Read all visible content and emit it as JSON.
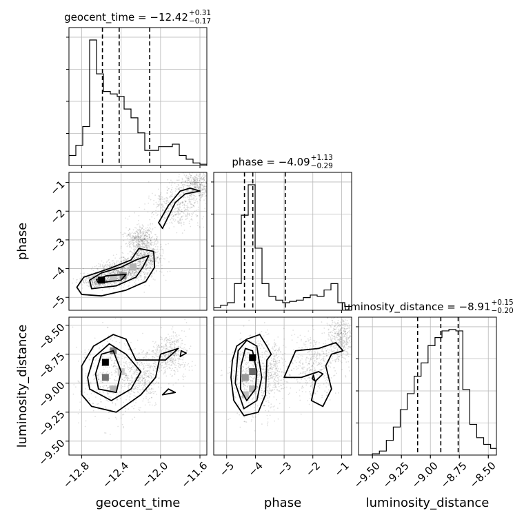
{
  "chart_data": {
    "type": "corner",
    "parameters": [
      "geocent_time",
      "phase",
      "luminosity_distance"
    ],
    "titles": [
      {
        "parameter": "geocent_time",
        "main": "geocent_time = −12.42",
        "plus": "+0.31",
        "minus": "−0.17"
      },
      {
        "parameter": "phase",
        "main": "phase = −4.09",
        "plus": "+1.13",
        "minus": "−0.29"
      },
      {
        "parameter": "luminosity_distance",
        "main": "luminosity_distance = −8.91",
        "plus": "+0.15",
        "minus": "−0.20"
      }
    ],
    "axis_labels": {
      "geocent_time": "geocent_time",
      "phase": "phase",
      "luminosity_distance": "luminosity_distance"
    },
    "ranges": {
      "geocent_time": [
        -12.93,
        -11.53
      ],
      "phase": [
        -5.45,
        -0.65
      ],
      "luminosity_distance": [
        -9.62,
        -8.43
      ]
    },
    "ticks": {
      "geocent_time": [
        {
          "value": -12.8,
          "label": "−12.8"
        },
        {
          "value": -12.4,
          "label": "−12.4"
        },
        {
          "value": -12.0,
          "label": "−12.0"
        },
        {
          "value": -11.6,
          "label": "−11.6"
        }
      ],
      "phase": [
        {
          "value": -5,
          "label": "−5"
        },
        {
          "value": -4,
          "label": "−4"
        },
        {
          "value": -3,
          "label": "−3"
        },
        {
          "value": -2,
          "label": "−2"
        },
        {
          "value": -1,
          "label": "−1"
        }
      ],
      "luminosity_distance": [
        {
          "value": -9.5,
          "label": "−9.50"
        },
        {
          "value": -9.25,
          "label": "−9.25"
        },
        {
          "value": -9.0,
          "label": "−9.00"
        },
        {
          "value": -8.75,
          "label": "−8.75"
        },
        {
          "value": -8.5,
          "label": "−8.50"
        }
      ]
    },
    "grid": true,
    "histograms": {
      "geocent_time": {
        "bin_edges": [
          -12.93,
          -12.86,
          -12.79,
          -12.72,
          -12.65,
          -12.58,
          -12.51,
          -12.44,
          -12.37,
          -12.3,
          -12.23,
          -12.16,
          -12.09,
          -12.02,
          -11.95,
          -11.88,
          -11.81,
          -11.74,
          -11.67,
          -11.6,
          -11.53
        ],
        "counts": [
          0.08,
          0.16,
          0.31,
          1.0,
          0.73,
          0.59,
          0.57,
          0.55,
          0.45,
          0.38,
          0.26,
          0.12,
          0.12,
          0.15,
          0.15,
          0.17,
          0.08,
          0.05,
          0.02,
          0.01
        ],
        "quantiles": [
          -12.59,
          -12.42,
          -12.11
        ]
      },
      "phase": {
        "bin_edges": [
          -5.45,
          -5.21,
          -4.97,
          -4.73,
          -4.49,
          -4.25,
          -4.01,
          -3.77,
          -3.53,
          -3.29,
          -3.05,
          -2.81,
          -2.57,
          -2.33,
          -2.09,
          -1.85,
          -1.61,
          -1.37,
          -1.13,
          -0.89,
          -0.65
        ],
        "counts": [
          0.02,
          0.04,
          0.06,
          0.21,
          0.75,
          0.99,
          0.49,
          0.21,
          0.11,
          0.08,
          0.06,
          0.07,
          0.08,
          0.1,
          0.12,
          0.11,
          0.16,
          0.21,
          0.06,
          0.03
        ],
        "quantiles": [
          -4.38,
          -4.09,
          -2.96
        ]
      },
      "luminosity_distance": {
        "bin_edges": [
          -9.62,
          -9.56,
          -9.5,
          -9.44,
          -9.38,
          -9.32,
          -9.26,
          -9.2,
          -9.14,
          -9.08,
          -9.02,
          -8.96,
          -8.9,
          -8.84,
          -8.78,
          -8.72,
          -8.66,
          -8.6,
          -8.54,
          -8.48,
          -8.43
        ],
        "counts": [
          0.0,
          0.0,
          0.01,
          0.03,
          0.11,
          0.21,
          0.34,
          0.46,
          0.59,
          0.69,
          0.82,
          0.88,
          0.93,
          0.94,
          0.93,
          0.49,
          0.23,
          0.13,
          0.08,
          0.05
        ],
        "quantiles": [
          -9.11,
          -8.91,
          -8.76
        ]
      }
    },
    "pairs": [
      {
        "x": "geocent_time",
        "y": "phase",
        "cluster_points": [
          [
            -12.62,
            -4.4,
            0.1,
            0.12
          ],
          [
            -12.45,
            -4.15,
            0.12,
            0.2
          ],
          [
            -12.3,
            -4.0,
            0.12,
            0.25
          ],
          [
            -12.15,
            -3.6,
            0.08,
            0.25
          ],
          [
            -12.2,
            -3.0,
            0.08,
            0.25
          ],
          [
            -11.85,
            -1.85,
            0.12,
            0.35
          ],
          [
            -11.65,
            -1.1,
            0.08,
            0.25
          ]
        ],
        "density_cells": [
          {
            "x": -12.6,
            "y": -4.4,
            "level": 1.0
          },
          {
            "x": -12.38,
            "y": -4.25,
            "level": 0.45
          },
          {
            "x": -12.28,
            "y": -3.95,
            "level": 0.3
          },
          {
            "x": -12.48,
            "y": -4.3,
            "level": 0.25
          }
        ],
        "contours": [
          [
            [
              -12.8,
              -4.9
            ],
            [
              -12.6,
              -4.95
            ],
            [
              -12.35,
              -4.75
            ],
            [
              -12.15,
              -4.45
            ],
            [
              -12.06,
              -3.95
            ],
            [
              -12.07,
              -3.4
            ],
            [
              -12.22,
              -3.3
            ],
            [
              -12.3,
              -3.7
            ],
            [
              -12.52,
              -4.0
            ],
            [
              -12.78,
              -4.3
            ],
            [
              -12.85,
              -4.65
            ]
          ],
          [
            [
              -12.7,
              -4.7
            ],
            [
              -12.45,
              -4.6
            ],
            [
              -12.25,
              -4.3
            ],
            [
              -12.18,
              -3.95
            ],
            [
              -12.12,
              -3.55
            ],
            [
              -12.25,
              -3.7
            ],
            [
              -12.4,
              -3.95
            ],
            [
              -12.6,
              -4.15
            ],
            [
              -12.72,
              -4.4
            ]
          ],
          [
            [
              -12.63,
              -4.5
            ],
            [
              -12.4,
              -4.4
            ],
            [
              -12.35,
              -4.2
            ],
            [
              -12.55,
              -4.25
            ],
            [
              -12.65,
              -4.38
            ]
          ],
          [
            [
              -11.98,
              -2.6
            ],
            [
              -11.85,
              -1.7
            ],
            [
              -11.75,
              -1.4
            ],
            [
              -11.6,
              -1.3
            ],
            [
              -11.7,
              -1.2
            ],
            [
              -11.8,
              -1.3
            ],
            [
              -11.92,
              -1.8
            ],
            [
              -12.02,
              -2.4
            ]
          ]
        ]
      },
      {
        "x": "geocent_time",
        "y": "luminosity_distance",
        "cluster_points": [
          [
            -12.5,
            -8.95,
            0.16,
            0.18
          ],
          [
            -12.2,
            -8.95,
            0.1,
            0.1
          ],
          [
            -11.9,
            -8.75,
            0.1,
            0.1
          ]
        ],
        "density_cells": [
          {
            "x": -12.56,
            "y": -8.82,
            "level": 1.0
          },
          {
            "x": -12.56,
            "y": -8.95,
            "level": 0.55
          },
          {
            "x": -12.48,
            "y": -8.72,
            "level": 0.5
          },
          {
            "x": -12.48,
            "y": -9.05,
            "level": 0.3
          },
          {
            "x": -12.4,
            "y": -8.9,
            "level": 0.2
          }
        ],
        "contours": [
          [
            [
              -12.8,
              -9.1
            ],
            [
              -12.7,
              -9.2
            ],
            [
              -12.45,
              -9.25
            ],
            [
              -12.2,
              -9.1
            ],
            [
              -12.05,
              -8.95
            ],
            [
              -12.0,
              -8.75
            ],
            [
              -11.82,
              -8.7
            ],
            [
              -11.95,
              -8.8
            ],
            [
              -12.25,
              -8.8
            ],
            [
              -12.35,
              -8.62
            ],
            [
              -12.48,
              -8.58
            ],
            [
              -12.68,
              -8.68
            ],
            [
              -12.8,
              -8.85
            ]
          ],
          [
            [
              -12.72,
              -9.05
            ],
            [
              -12.5,
              -9.15
            ],
            [
              -12.3,
              -9.05
            ],
            [
              -12.2,
              -8.9
            ],
            [
              -12.35,
              -8.75
            ],
            [
              -12.52,
              -8.66
            ],
            [
              -12.68,
              -8.78
            ],
            [
              -12.74,
              -8.95
            ]
          ],
          [
            [
              -12.63,
              -9.05
            ],
            [
              -12.45,
              -9.08
            ],
            [
              -12.4,
              -8.9
            ],
            [
              -12.48,
              -8.72
            ],
            [
              -12.6,
              -8.75
            ],
            [
              -12.66,
              -8.92
            ]
          ],
          [
            [
              -11.92,
              -9.05
            ],
            [
              -11.85,
              -9.08
            ],
            [
              -11.98,
              -9.1
            ]
          ],
          [
            [
              -11.8,
              -8.77
            ],
            [
              -11.74,
              -8.74
            ],
            [
              -11.79,
              -8.72
            ]
          ]
        ]
      },
      {
        "x": "phase",
        "y": "luminosity_distance",
        "cluster_points": [
          [
            -4.2,
            -8.95,
            0.35,
            0.18
          ],
          [
            -3.5,
            -8.9,
            0.3,
            0.15
          ],
          [
            -2.0,
            -8.85,
            0.45,
            0.15
          ],
          [
            -1.0,
            -8.6,
            0.25,
            0.1
          ]
        ],
        "density_cells": [
          {
            "x": -4.1,
            "y": -8.78,
            "level": 1.0
          },
          {
            "x": -4.1,
            "y": -8.9,
            "level": 0.6
          },
          {
            "x": -4.35,
            "y": -8.95,
            "level": 0.4
          },
          {
            "x": -4.35,
            "y": -9.1,
            "level": 0.25
          },
          {
            "x": -4.1,
            "y": -9.05,
            "level": 0.3
          }
        ],
        "contours": [
          [
            [
              -4.85,
              -8.95
            ],
            [
              -4.75,
              -9.15
            ],
            [
              -4.4,
              -9.28
            ],
            [
              -3.9,
              -9.25
            ],
            [
              -3.65,
              -9.1
            ],
            [
              -3.6,
              -8.8
            ],
            [
              -3.45,
              -8.75
            ],
            [
              -3.6,
              -8.68
            ],
            [
              -3.85,
              -8.58
            ],
            [
              -4.3,
              -8.62
            ],
            [
              -4.65,
              -8.68
            ],
            [
              -4.8,
              -8.8
            ]
          ],
          [
            [
              -4.7,
              -9.0
            ],
            [
              -4.4,
              -9.22
            ],
            [
              -3.95,
              -9.15
            ],
            [
              -3.78,
              -8.95
            ],
            [
              -3.95,
              -8.68
            ],
            [
              -4.3,
              -8.63
            ],
            [
              -4.6,
              -8.72
            ]
          ],
          [
            [
              -4.52,
              -9.05
            ],
            [
              -4.3,
              -9.15
            ],
            [
              -4.0,
              -9.05
            ],
            [
              -3.95,
              -8.9
            ],
            [
              -4.1,
              -8.72
            ],
            [
              -4.35,
              -8.7
            ],
            [
              -4.5,
              -8.85
            ]
          ],
          [
            [
              -3.0,
              -8.95
            ],
            [
              -2.4,
              -8.95
            ],
            [
              -1.8,
              -8.9
            ],
            [
              -1.65,
              -8.92
            ],
            [
              -1.9,
              -8.98
            ],
            [
              -2.05,
              -9.15
            ],
            [
              -1.65,
              -9.2
            ],
            [
              -1.35,
              -9.05
            ],
            [
              -1.55,
              -8.85
            ],
            [
              -1.35,
              -8.75
            ],
            [
              -0.95,
              -8.72
            ],
            [
              -1.2,
              -8.65
            ],
            [
              -1.8,
              -8.7
            ],
            [
              -2.6,
              -8.72
            ]
          ],
          [
            [
              -1.98,
              -8.93
            ],
            [
              -1.93,
              -8.98
            ],
            [
              -2.02,
              -8.96
            ]
          ]
        ]
      }
    ]
  }
}
